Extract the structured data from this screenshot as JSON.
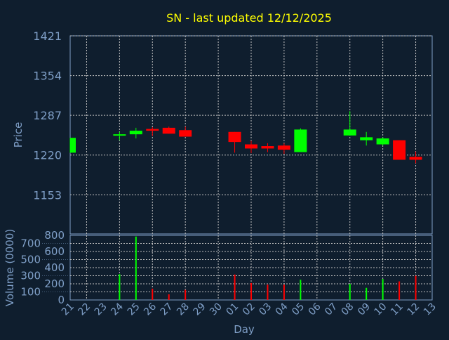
{
  "chart_data": [
    {
      "type": "candlestick",
      "title": "SN - last updated 12/12/2025",
      "ylabel": "Price",
      "xlabel": "Day",
      "yticks": [
        1153,
        1220,
        1287,
        1354,
        1421
      ],
      "ylim": [
        1087,
        1421
      ],
      "grid": true,
      "x_ticks": [
        "21",
        "22",
        "23",
        "24",
        "25",
        "26",
        "27",
        "28",
        "29",
        "30",
        "01",
        "02",
        "03",
        "04",
        "05",
        "06",
        "07",
        "08",
        "09",
        "10",
        "11",
        "12",
        "13"
      ],
      "candles": [
        {
          "day": "21",
          "open": 1224,
          "high": 1249,
          "low": 1224,
          "close": 1249
        },
        {
          "day": "24",
          "open": 1254,
          "high": 1259,
          "low": 1245,
          "close": 1255
        },
        {
          "day": "25",
          "open": 1255,
          "high": 1266,
          "low": 1248,
          "close": 1261
        },
        {
          "day": "26",
          "open": 1264,
          "high": 1267,
          "low": 1252,
          "close": 1261
        },
        {
          "day": "27",
          "open": 1266,
          "high": 1268,
          "low": 1256,
          "close": 1256
        },
        {
          "day": "28",
          "open": 1262,
          "high": 1268,
          "low": 1251,
          "close": 1251
        },
        {
          "day": "01",
          "open": 1259,
          "high": 1259,
          "low": 1224,
          "close": 1242
        },
        {
          "day": "02",
          "open": 1238,
          "high": 1244,
          "low": 1223,
          "close": 1231
        },
        {
          "day": "03",
          "open": 1235,
          "high": 1240,
          "low": 1225,
          "close": 1231
        },
        {
          "day": "04",
          "open": 1236,
          "high": 1240,
          "low": 1222,
          "close": 1229
        },
        {
          "day": "05",
          "open": 1225,
          "high": 1265,
          "low": 1225,
          "close": 1263
        },
        {
          "day": "08",
          "open": 1253,
          "high": 1294,
          "low": 1253,
          "close": 1263
        },
        {
          "day": "09",
          "open": 1245,
          "high": 1259,
          "low": 1236,
          "close": 1250
        },
        {
          "day": "10",
          "open": 1238,
          "high": 1250,
          "low": 1236,
          "close": 1248
        },
        {
          "day": "11",
          "open": 1245,
          "high": 1245,
          "low": 1212,
          "close": 1212
        },
        {
          "day": "12",
          "open": 1217,
          "high": 1226,
          "low": 1206,
          "close": 1212
        }
      ],
      "colors": {
        "up": "#00ff00",
        "down": "#ff0000",
        "title": "#ffff00",
        "axis_text": "#7f9fc7",
        "grid": "#c0c0c0"
      }
    },
    {
      "type": "bar",
      "ylabel": "Volume (0000)",
      "yticks": [
        0,
        100,
        200,
        300,
        400,
        500,
        600,
        700,
        800
      ],
      "ylim": [
        0,
        800
      ],
      "volumes": [
        {
          "day": "24",
          "value": 320,
          "dir": "up"
        },
        {
          "day": "25",
          "value": 785,
          "dir": "up"
        },
        {
          "day": "26",
          "value": 140,
          "dir": "down"
        },
        {
          "day": "27",
          "value": 70,
          "dir": "down"
        },
        {
          "day": "28",
          "value": 125,
          "dir": "down"
        },
        {
          "day": "01",
          "value": 315,
          "dir": "down"
        },
        {
          "day": "02",
          "value": 210,
          "dir": "down"
        },
        {
          "day": "03",
          "value": 190,
          "dir": "down"
        },
        {
          "day": "04",
          "value": 190,
          "dir": "down"
        },
        {
          "day": "05",
          "value": 250,
          "dir": "up"
        },
        {
          "day": "08",
          "value": 200,
          "dir": "up"
        },
        {
          "day": "09",
          "value": 150,
          "dir": "up"
        },
        {
          "day": "10",
          "value": 260,
          "dir": "up"
        },
        {
          "day": "11",
          "value": 230,
          "dir": "down"
        },
        {
          "day": "12",
          "value": 300,
          "dir": "down"
        }
      ]
    }
  ]
}
